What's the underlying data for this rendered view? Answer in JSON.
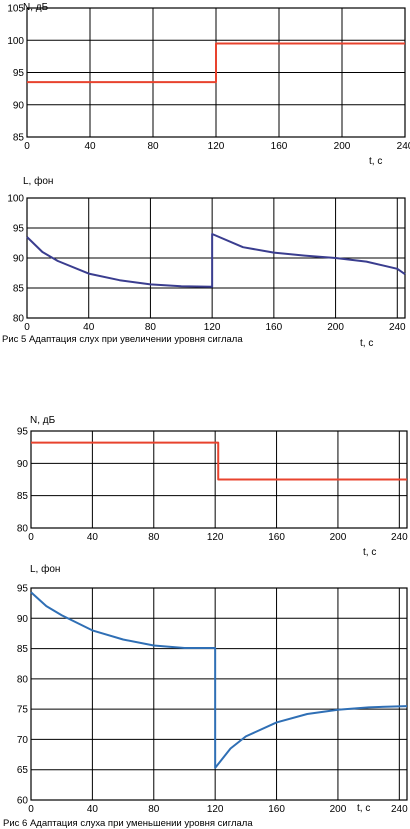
{
  "chart_data": [
    {
      "type": "line",
      "ylabel": "N, дБ",
      "xlabel": "t, c",
      "xlim": [
        0,
        240
      ],
      "ylim": [
        85,
        105
      ],
      "x_ticks": [
        0,
        40,
        80,
        120,
        160,
        200,
        240
      ],
      "y_ticks": [
        85,
        90,
        95,
        100,
        105
      ],
      "grid": true,
      "series": [
        {
          "color": "#e8432e",
          "x": [
            0,
            120,
            120,
            240
          ],
          "y": [
            93.5,
            93.5,
            99.5,
            99.5
          ]
        }
      ]
    },
    {
      "type": "line",
      "ylabel": "L, фон",
      "xlabel": "t, c",
      "xlim": [
        0,
        245
      ],
      "ylim": [
        80,
        100
      ],
      "x_ticks": [
        0,
        40,
        80,
        120,
        160,
        200,
        240
      ],
      "y_ticks": [
        80,
        85,
        90,
        95,
        100
      ],
      "grid": true,
      "caption": "Рис 5 Адаптация слух при увеличении уровня сиглала",
      "series": [
        {
          "color": "#3a3d8f",
          "x": [
            0,
            10,
            20,
            40,
            60,
            80,
            100,
            120,
            120,
            140,
            160,
            180,
            200,
            220,
            240,
            245
          ],
          "y": [
            93.5,
            91,
            89.5,
            87.4,
            86.3,
            85.6,
            85.3,
            85.2,
            94,
            91.8,
            90.9,
            90.4,
            90,
            89.4,
            88.2,
            87.3
          ]
        }
      ]
    },
    {
      "type": "line",
      "ylabel": "N, дБ",
      "xlabel": "t, c",
      "xlim": [
        0,
        245
      ],
      "ylim": [
        80,
        95
      ],
      "x_ticks": [
        0,
        40,
        80,
        120,
        160,
        200,
        240
      ],
      "y_ticks": [
        80,
        85,
        90,
        95
      ],
      "grid": true,
      "series": [
        {
          "color": "#e8432e",
          "x": [
            0,
            122,
            122,
            245
          ],
          "y": [
            93.2,
            93.2,
            87.5,
            87.5
          ]
        }
      ]
    },
    {
      "type": "line",
      "ylabel": "L, фон",
      "xlabel": "t, c",
      "xlim": [
        0,
        245
      ],
      "ylim": [
        60,
        95
      ],
      "x_ticks": [
        0,
        40,
        80,
        120,
        160,
        200,
        240
      ],
      "y_ticks": [
        60,
        65,
        70,
        75,
        80,
        85,
        90,
        95
      ],
      "grid": true,
      "caption": "Рис 6 Адаптация слуха при уменьшении уровня сиглала",
      "series": [
        {
          "color": "#2f6fb5",
          "x": [
            0,
            10,
            20,
            40,
            60,
            80,
            100,
            120,
            120,
            130,
            140,
            160,
            180,
            200,
            220,
            245
          ],
          "y": [
            94.3,
            92,
            90.5,
            88,
            86.5,
            85.5,
            85.1,
            85.1,
            65.3,
            68.5,
            70.5,
            72.8,
            74.2,
            74.9,
            75.3,
            75.5
          ]
        }
      ]
    }
  ]
}
